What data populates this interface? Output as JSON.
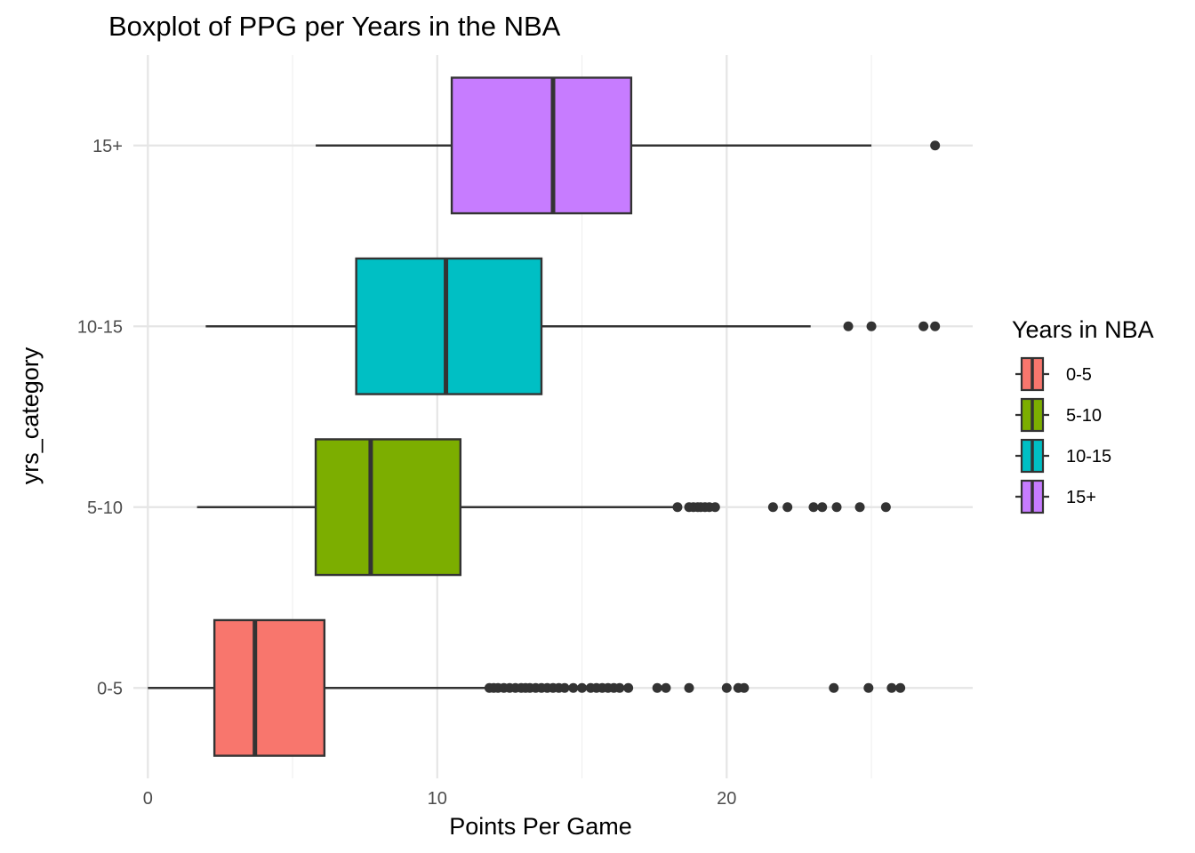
{
  "chart_data": {
    "type": "boxplot",
    "orientation": "horizontal",
    "title": "Boxplot of PPG per Years in the NBA",
    "xlabel": "Points Per Game",
    "ylabel": "yrs_category",
    "xlim": [
      -0.5,
      28.5
    ],
    "x_ticks": [
      0,
      10,
      20
    ],
    "grid": true,
    "legend": {
      "title": "Years in NBA",
      "placement": "right",
      "entries": [
        "0-5",
        "5-10",
        "10-15",
        "15+"
      ]
    },
    "categories": [
      "0-5",
      "5-10",
      "10-15",
      "15+"
    ],
    "series": [
      {
        "name": "0-5",
        "color": "#F8766D",
        "whisker_low": 0.0,
        "q1": 2.3,
        "median": 3.7,
        "q3": 6.1,
        "whisker_high": 11.7,
        "outliers": [
          11.8,
          11.95,
          12.1,
          12.3,
          12.5,
          12.7,
          12.9,
          13.05,
          13.2,
          13.4,
          13.6,
          13.8,
          14.0,
          14.2,
          14.4,
          14.7,
          15.0,
          15.3,
          15.5,
          15.7,
          15.9,
          16.1,
          16.3,
          16.6,
          17.6,
          17.9,
          18.7,
          20.0,
          20.4,
          20.6,
          23.7,
          24.9,
          25.7,
          26.0
        ]
      },
      {
        "name": "5-10",
        "color": "#7CAE00",
        "whisker_low": 1.7,
        "q1": 5.8,
        "median": 7.7,
        "q3": 10.8,
        "whisker_high": 18.2,
        "outliers": [
          18.3,
          18.7,
          18.85,
          19.0,
          19.1,
          19.25,
          19.4,
          19.6,
          21.6,
          22.1,
          23.0,
          23.3,
          23.8,
          24.6,
          25.5
        ]
      },
      {
        "name": "10-15",
        "color": "#00BFC4",
        "whisker_low": 2.0,
        "q1": 7.2,
        "median": 10.3,
        "q3": 13.6,
        "whisker_high": 22.9,
        "outliers": [
          24.2,
          25.0,
          26.8,
          27.2
        ]
      },
      {
        "name": "15+",
        "color": "#C77CFF",
        "whisker_low": 5.8,
        "q1": 10.5,
        "median": 14.0,
        "q3": 16.7,
        "whisker_high": 25.0,
        "outliers": [
          27.2
        ]
      }
    ]
  }
}
